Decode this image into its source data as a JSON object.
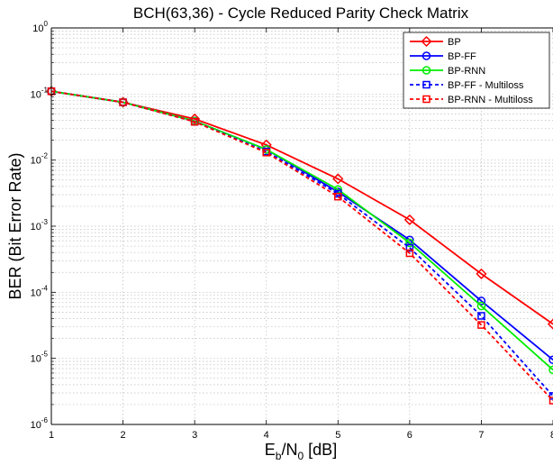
{
  "chart_data": {
    "type": "line",
    "title": "BCH(63,36) - Cycle Reduced Parity Check Matrix",
    "xlabel": {
      "main": "E",
      "sub1": "b",
      "mid": "/N",
      "sub2": "0",
      "tail": " [dB]"
    },
    "ylabel": "BER (Bit Error Rate)",
    "x": [
      1,
      2,
      3,
      4,
      5,
      6,
      7,
      8
    ],
    "xlim": [
      1,
      8
    ],
    "ylim": [
      1e-06,
      1
    ],
    "yscale": "log",
    "x_ticks": [
      "1",
      "2",
      "3",
      "4",
      "5",
      "6",
      "7",
      "8"
    ],
    "y_ticks": [
      {
        "base": "10",
        "exp": "-6",
        "value": 1e-06
      },
      {
        "base": "10",
        "exp": "-5",
        "value": 1e-05
      },
      {
        "base": "10",
        "exp": "-4",
        "value": 0.0001
      },
      {
        "base": "10",
        "exp": "-3",
        "value": 0.001
      },
      {
        "base": "10",
        "exp": "-2",
        "value": 0.01
      },
      {
        "base": "10",
        "exp": "-1",
        "value": 0.1
      },
      {
        "base": "10",
        "exp": "0",
        "value": 1
      }
    ],
    "grid": true,
    "legend_position": "top-right",
    "series": [
      {
        "name": "BP",
        "color": "#ff0000",
        "marker": "diamond",
        "dash": false,
        "values": [
          0.11,
          0.075,
          0.042,
          0.017,
          0.0052,
          0.00125,
          0.00019,
          3.3e-05
        ]
      },
      {
        "name": "BP-FF",
        "color": "#0000ff",
        "marker": "circle",
        "dash": false,
        "values": [
          0.11,
          0.075,
          0.039,
          0.0145,
          0.0033,
          0.00062,
          7.4e-05,
          9.5e-06
        ]
      },
      {
        "name": "BP-RNN",
        "color": "#00ee00",
        "marker": "circle",
        "dash": false,
        "values": [
          0.11,
          0.075,
          0.039,
          0.0145,
          0.0036,
          0.00056,
          6.2e-05,
          6.7e-06
        ]
      },
      {
        "name": "BP-FF - Multiloss",
        "color": "#0000ff",
        "marker": "square",
        "dash": true,
        "values": [
          0.11,
          0.075,
          0.038,
          0.0135,
          0.0031,
          0.00047,
          4.4e-05,
          2.7e-06
        ]
      },
      {
        "name": "BP-RNN - Multiloss",
        "color": "#ff0000",
        "marker": "square",
        "dash": true,
        "values": [
          0.11,
          0.075,
          0.038,
          0.013,
          0.0028,
          0.00039,
          3.2e-05,
          2.3e-06
        ]
      }
    ]
  }
}
